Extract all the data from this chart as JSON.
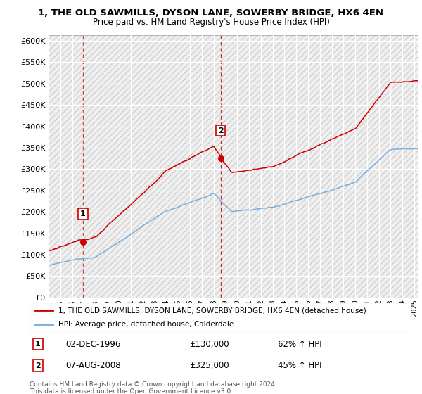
{
  "title": "1, THE OLD SAWMILLS, DYSON LANE, SOWERBY BRIDGE, HX6 4EN",
  "subtitle": "Price paid vs. HM Land Registry's House Price Index (HPI)",
  "legend_line1": "1, THE OLD SAWMILLS, DYSON LANE, SOWERBY BRIDGE, HX6 4EN (detached house)",
  "legend_line2": "HPI: Average price, detached house, Calderdale",
  "annotation1_label": "1",
  "annotation1_date": "02-DEC-1996",
  "annotation1_price": "£130,000",
  "annotation1_hpi": "62% ↑ HPI",
  "annotation2_label": "2",
  "annotation2_date": "07-AUG-2008",
  "annotation2_price": "£325,000",
  "annotation2_hpi": "45% ↑ HPI",
  "footnote": "Contains HM Land Registry data © Crown copyright and database right 2024.\nThis data is licensed under the Open Government Licence v3.0.",
  "sale_color": "#cc0000",
  "hpi_color": "#7aaddb",
  "vline_color": "#cc0000",
  "ylim": [
    0,
    612500
  ],
  "yticks": [
    0,
    50000,
    100000,
    150000,
    200000,
    250000,
    300000,
    350000,
    400000,
    450000,
    500000,
    550000,
    600000
  ],
  "sale1_year": 1996.92,
  "sale1_price": 130000,
  "sale2_year": 2008.58,
  "sale2_price": 325000,
  "xmin": 1994,
  "xmax": 2025.3
}
